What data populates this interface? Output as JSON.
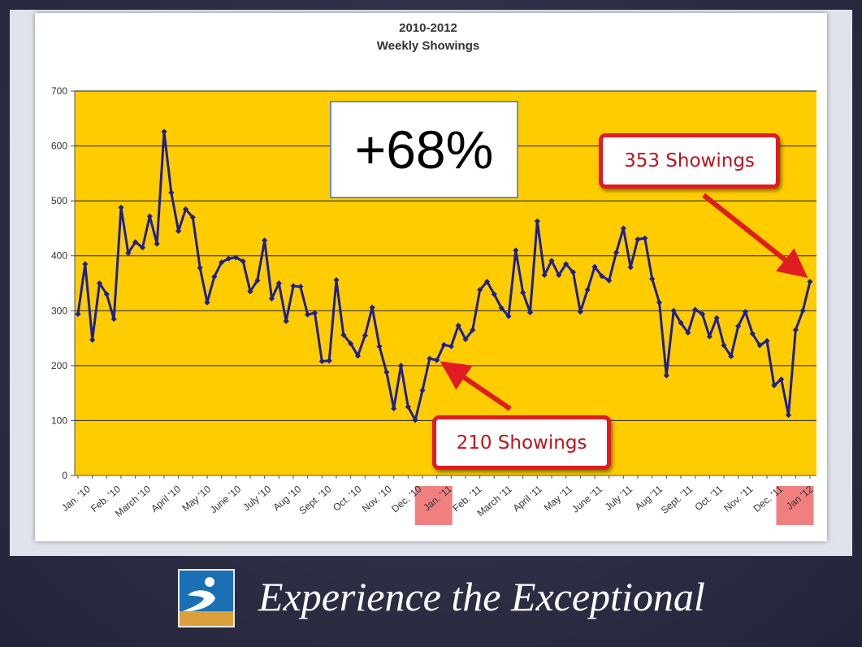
{
  "chart_data": {
    "type": "line",
    "title": "2010-2012",
    "subtitle": "Weekly Showings",
    "ylim": [
      0,
      700
    ],
    "yticks": [
      0,
      100,
      200,
      300,
      400,
      500,
      600,
      700
    ],
    "grid": "horizontal",
    "plot_background": "#FFCC00",
    "line_color": "#1F1F8F",
    "highlight_color": "#F08080",
    "x_tick_labels": [
      "Jan. '10",
      "Feb. '10",
      "March '10",
      "April '10",
      "May '10",
      "June '10",
      "July '10",
      "Aug '10",
      "Sept. '10",
      "Oct. '10",
      "Nov. '10",
      "Dec. '10",
      "Jan. '11",
      "Feb. '11",
      "March '11",
      "April '11",
      "May '11",
      "June '11",
      "July '11",
      "Aug '11",
      "Sept. '11",
      "Oct. '11",
      "Nov. '11",
      "Dec. '11",
      "Jan '12"
    ],
    "highlighted_ticks": [
      "Jan. '11",
      "Jan '12"
    ],
    "series": [
      {
        "values": [
          294,
          385,
          247,
          350,
          330,
          285,
          488,
          405,
          425,
          415,
          472,
          422,
          626,
          515,
          445,
          485,
          470,
          378,
          315,
          362,
          388,
          395,
          397,
          390,
          335,
          355,
          428,
          322,
          350,
          281,
          345,
          344,
          293,
          296,
          208,
          209,
          356,
          256,
          240,
          218,
          255,
          306,
          235,
          188,
          122,
          200,
          125,
          101,
          155,
          213,
          210,
          238,
          235,
          273,
          248,
          265,
          338,
          353,
          330,
          305,
          290,
          410,
          333,
          297,
          463,
          365,
          391,
          365,
          385,
          370,
          298,
          338,
          380,
          363,
          355,
          406,
          450,
          379,
          430,
          432,
          358,
          315,
          182,
          300,
          278,
          260,
          302,
          294,
          253,
          287,
          237,
          217,
          272,
          298,
          258,
          237,
          245,
          164,
          175,
          110,
          265,
          300,
          353
        ]
      }
    ],
    "annotations": {
      "percent_change": "+68%",
      "low_callout": "210 Showings",
      "high_callout": "353 Showings"
    }
  },
  "footer": {
    "tagline": "Experience the Exceptional",
    "logo_icon": "company-logo-icon"
  }
}
